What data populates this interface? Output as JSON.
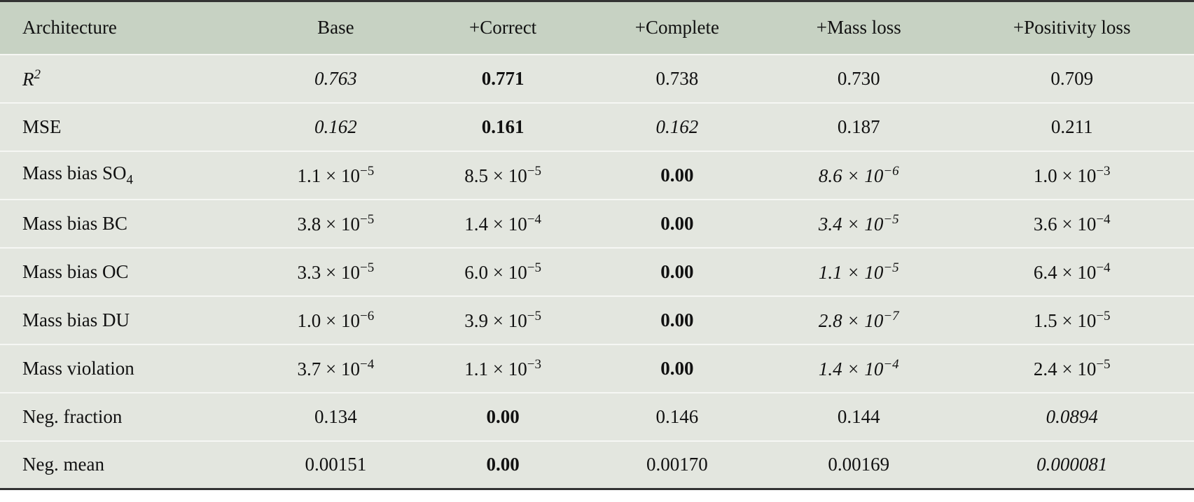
{
  "table": {
    "header": [
      "Architecture",
      "Base",
      "+Correct",
      "+Complete",
      "+Mass loss",
      "+Positivity loss"
    ],
    "rows": [
      {
        "label": {
          "text": "R",
          "sup": "2",
          "style": "italic"
        },
        "cells": [
          {
            "text": "0.763",
            "style": "italic"
          },
          {
            "text": "0.771",
            "style": "bold"
          },
          {
            "text": "0.738",
            "style": "normal"
          },
          {
            "text": "0.730",
            "style": "normal"
          },
          {
            "text": "0.709",
            "style": "normal"
          }
        ]
      },
      {
        "label": {
          "text": "MSE",
          "style": "normal"
        },
        "cells": [
          {
            "text": "0.162",
            "style": "italic"
          },
          {
            "text": "0.161",
            "style": "bold"
          },
          {
            "text": "0.162",
            "style": "italic"
          },
          {
            "text": "0.187",
            "style": "normal"
          },
          {
            "text": "0.211",
            "style": "normal"
          }
        ]
      },
      {
        "label": {
          "text": "Mass bias SO",
          "sub": "4",
          "style": "normal"
        },
        "cells": [
          {
            "text": "1.1 × 10",
            "sup": "−5",
            "style": "normal"
          },
          {
            "text": "8.5 × 10",
            "sup": "−5",
            "style": "normal"
          },
          {
            "text": "0.00",
            "style": "bold"
          },
          {
            "text": "8.6 × 10",
            "sup": "−6",
            "style": "italic"
          },
          {
            "text": "1.0 × 10",
            "sup": "−3",
            "style": "normal"
          }
        ]
      },
      {
        "label": {
          "text": "Mass bias BC",
          "style": "normal"
        },
        "cells": [
          {
            "text": "3.8 × 10",
            "sup": "−5",
            "style": "normal"
          },
          {
            "text": "1.4 × 10",
            "sup": "−4",
            "style": "normal"
          },
          {
            "text": "0.00",
            "style": "bold"
          },
          {
            "text": "3.4 × 10",
            "sup": "−5",
            "style": "italic"
          },
          {
            "text": "3.6 × 10",
            "sup": "−4",
            "style": "normal"
          }
        ]
      },
      {
        "label": {
          "text": "Mass bias OC",
          "style": "normal"
        },
        "cells": [
          {
            "text": "3.3 × 10",
            "sup": "−5",
            "style": "normal"
          },
          {
            "text": "6.0 × 10",
            "sup": "−5",
            "style": "normal"
          },
          {
            "text": "0.00",
            "style": "bold"
          },
          {
            "text": "1.1 × 10",
            "sup": "−5",
            "style": "italic"
          },
          {
            "text": "6.4 × 10",
            "sup": "−4",
            "style": "normal"
          }
        ]
      },
      {
        "label": {
          "text": "Mass bias DU",
          "style": "normal"
        },
        "cells": [
          {
            "text": "1.0 × 10",
            "sup": "−6",
            "style": "normal"
          },
          {
            "text": "3.9 × 10",
            "sup": "−5",
            "style": "normal"
          },
          {
            "text": "0.00",
            "style": "bold"
          },
          {
            "text": "2.8 × 10",
            "sup": "−7",
            "style": "italic"
          },
          {
            "text": "1.5 × 10",
            "sup": "−5",
            "style": "normal"
          }
        ]
      },
      {
        "label": {
          "text": "Mass violation",
          "style": "normal"
        },
        "cells": [
          {
            "text": "3.7 × 10",
            "sup": "−4",
            "style": "normal"
          },
          {
            "text": "1.1 × 10",
            "sup": "−3",
            "style": "normal"
          },
          {
            "text": "0.00",
            "style": "bold"
          },
          {
            "text": "1.4 × 10",
            "sup": "−4",
            "style": "italic"
          },
          {
            "text": "2.4 × 10",
            "sup": "−5",
            "style": "normal"
          }
        ]
      },
      {
        "label": {
          "text": "Neg. fraction",
          "style": "normal"
        },
        "cells": [
          {
            "text": "0.134",
            "style": "normal"
          },
          {
            "text": "0.00",
            "style": "bold"
          },
          {
            "text": "0.146",
            "style": "normal"
          },
          {
            "text": "0.144",
            "style": "normal"
          },
          {
            "text": "0.0894",
            "style": "italic"
          }
        ]
      },
      {
        "label": {
          "text": "Neg. mean",
          "style": "normal"
        },
        "cells": [
          {
            "text": "0.00151",
            "style": "normal"
          },
          {
            "text": "0.00",
            "style": "bold"
          },
          {
            "text": "0.00170",
            "style": "normal"
          },
          {
            "text": "0.00169",
            "style": "normal"
          },
          {
            "text": "0.000081",
            "style": "italic"
          }
        ]
      }
    ]
  }
}
